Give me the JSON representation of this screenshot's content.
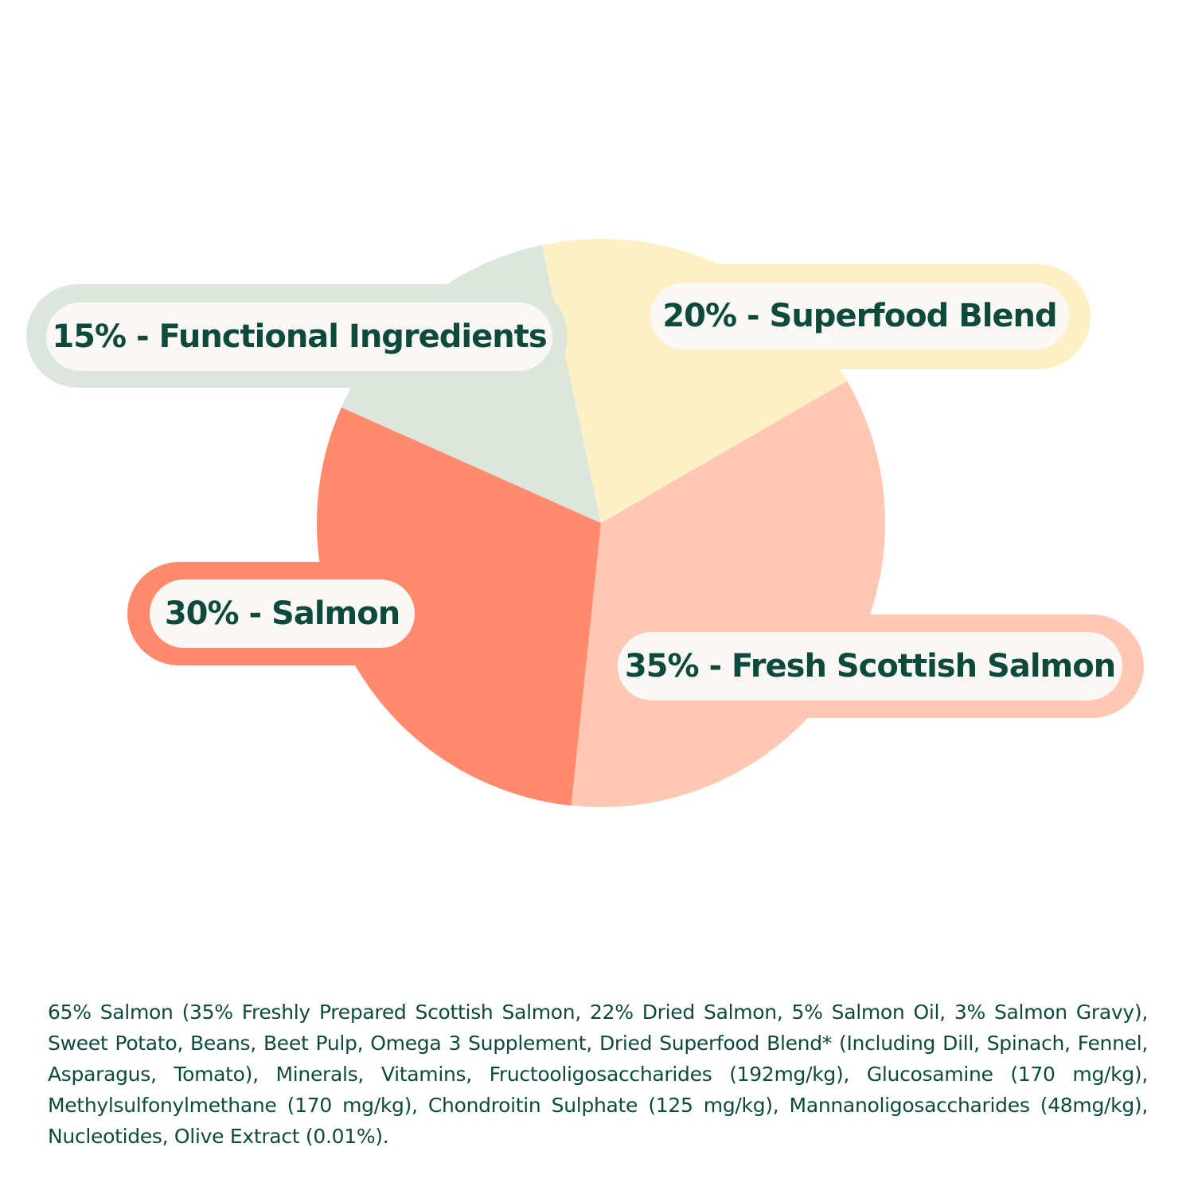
{
  "chart_data": {
    "type": "pie",
    "title": "",
    "categories": [
      "Fresh Scottish Salmon",
      "Salmon",
      "Functional Ingredients",
      "Superfood Blend"
    ],
    "values": [
      35,
      30,
      15,
      20
    ],
    "colors": [
      "#ffc8b4",
      "#ff8a6d",
      "#dde6dd",
      "#fdf0c4"
    ],
    "labels": [
      "35% - Fresh Scottish Salmon",
      "30% - Salmon",
      "15% - Functional Ingredients",
      "20% - Superfood Blend"
    ],
    "label_text_color": "#0d4a3c",
    "label_background": "#faf8f5"
  },
  "ingredients_text": "65% Salmon (35% Freshly Prepared Scottish Salmon, 22% Dried Salmon, 5% Salmon Oil, 3% Salmon Gravy), Sweet Potato, Beans, Beet Pulp, Omega 3 Supplement, Dried Superfood Blend* (Including Dill, Spinach, Fennel, Asparagus, Tomato), Minerals, Vitamins, Fructooligosaccharides (192mg/kg), Glucosamine (170 mg/kg), Methylsulfonylmethane (170 mg/kg), Chondroitin Sulphate (125 mg/kg), Mannanoligosaccharides (48mg/kg), Nucleotides, Olive Extract (0.01%)."
}
